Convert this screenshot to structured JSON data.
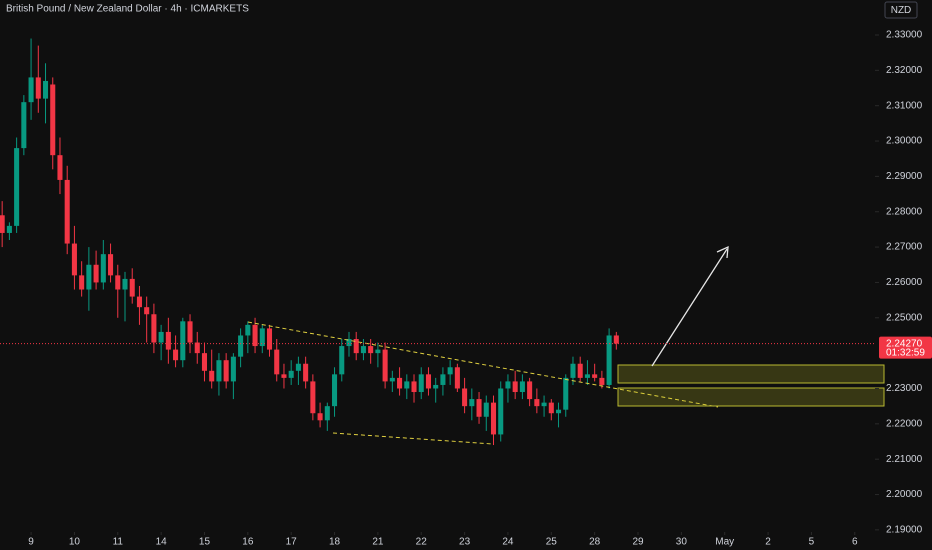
{
  "chart_data": {
    "type": "candlestick",
    "title": "British Pound / New Zealand Dollar · 4h · ICMARKETS",
    "currency": "NZD",
    "up_color": "#089981",
    "down_color": "#f23645",
    "x": [
      -4,
      -3,
      -2,
      -1,
      0,
      1,
      2,
      3,
      4,
      5,
      6,
      7,
      8,
      9,
      10,
      11,
      12,
      13,
      14,
      15,
      16,
      17,
      18,
      19,
      20,
      21,
      22,
      23,
      24,
      25,
      26,
      27,
      28,
      29,
      30,
      31,
      32,
      33,
      34,
      35,
      36,
      37,
      38,
      39,
      40,
      41,
      42,
      43,
      44,
      45,
      46,
      47,
      48,
      49,
      50,
      51,
      52,
      53,
      54,
      55,
      56,
      57,
      58,
      59,
      60,
      61,
      62,
      63,
      64,
      65,
      66,
      67,
      68,
      69,
      70,
      71,
      72,
      73,
      74,
      75,
      76,
      77,
      78,
      79,
      80,
      81
    ],
    "open": [
      2.279,
      2.274,
      2.276,
      2.298,
      2.311,
      2.318,
      2.312,
      2.316,
      2.296,
      2.289,
      2.271,
      2.262,
      2.258,
      2.265,
      2.26,
      2.268,
      2.262,
      2.258,
      2.261,
      2.256,
      2.253,
      2.251,
      2.243,
      2.246,
      2.241,
      2.238,
      2.249,
      2.243,
      2.24,
      2.235,
      2.232,
      2.238,
      2.232,
      2.239,
      2.245,
      2.248,
      2.242,
      2.247,
      2.241,
      2.234,
      2.233,
      2.235,
      2.237,
      2.232,
      2.223,
      2.221,
      2.225,
      2.234,
      2.242,
      2.244,
      2.24,
      2.242,
      2.24,
      2.241,
      2.232,
      2.233,
      2.23,
      2.232,
      2.229,
      2.234,
      2.23,
      2.231,
      2.234,
      2.236,
      2.23,
      2.225,
      2.227,
      2.222,
      2.226,
      2.217,
      2.23,
      2.232,
      2.229,
      2.232,
      2.227,
      2.225,
      2.226,
      2.223,
      2.224,
      2.233,
      2.237,
      2.233,
      2.234,
      2.233,
      2.231,
      2.245
    ],
    "high": [
      2.283,
      2.277,
      2.301,
      2.313,
      2.329,
      2.327,
      2.322,
      2.318,
      2.301,
      2.293,
      2.276,
      2.266,
      2.27,
      2.269,
      2.272,
      2.271,
      2.265,
      2.263,
      2.264,
      2.259,
      2.256,
      2.254,
      2.248,
      2.25,
      2.245,
      2.25,
      2.251,
      2.246,
      2.243,
      2.241,
      2.24,
      2.24,
      2.24,
      2.247,
      2.249,
      2.25,
      2.248,
      2.248,
      2.244,
      2.237,
      2.238,
      2.239,
      2.239,
      2.234,
      2.226,
      2.226,
      2.236,
      2.244,
      2.246,
      2.246,
      2.244,
      2.244,
      2.243,
      2.243,
      2.235,
      2.236,
      2.234,
      2.234,
      2.236,
      2.236,
      2.233,
      2.236,
      2.238,
      2.237,
      2.233,
      2.23,
      2.229,
      2.228,
      2.228,
      2.232,
      2.234,
      2.235,
      2.234,
      2.233,
      2.23,
      2.228,
      2.227,
      2.226,
      2.234,
      2.239,
      2.239,
      2.238,
      2.237,
      2.235,
      2.247,
      2.246
    ],
    "low": [
      2.27,
      2.272,
      2.274,
      2.296,
      2.306,
      2.308,
      2.305,
      2.292,
      2.285,
      2.268,
      2.258,
      2.256,
      2.252,
      2.258,
      2.258,
      2.26,
      2.25,
      2.249,
      2.254,
      2.248,
      2.243,
      2.24,
      2.238,
      2.237,
      2.236,
      2.236,
      2.24,
      2.237,
      2.232,
      2.23,
      2.228,
      2.23,
      2.227,
      2.236,
      2.24,
      2.24,
      2.24,
      2.239,
      2.232,
      2.23,
      2.231,
      2.231,
      2.23,
      2.221,
      2.219,
      2.218,
      2.222,
      2.232,
      2.239,
      2.238,
      2.238,
      2.237,
      2.236,
      2.23,
      2.229,
      2.228,
      2.227,
      2.226,
      2.227,
      2.228,
      2.226,
      2.228,
      2.231,
      2.229,
      2.223,
      2.221,
      2.22,
      2.218,
      2.214,
      2.215,
      2.226,
      2.227,
      2.227,
      2.225,
      2.223,
      2.222,
      2.221,
      2.219,
      2.222,
      2.231,
      2.232,
      2.231,
      2.232,
      2.23,
      2.23,
      2.241
    ],
    "close": [
      2.274,
      2.276,
      2.298,
      2.311,
      2.318,
      2.312,
      2.317,
      2.296,
      2.289,
      2.271,
      2.262,
      2.258,
      2.265,
      2.26,
      2.268,
      2.262,
      2.258,
      2.261,
      2.256,
      2.253,
      2.251,
      2.243,
      2.246,
      2.241,
      2.238,
      2.249,
      2.243,
      2.24,
      2.235,
      2.232,
      2.238,
      2.232,
      2.239,
      2.245,
      2.248,
      2.242,
      2.247,
      2.241,
      2.234,
      2.233,
      2.235,
      2.237,
      2.232,
      2.223,
      2.221,
      2.225,
      2.234,
      2.242,
      2.244,
      2.24,
      2.242,
      2.24,
      2.241,
      2.232,
      2.233,
      2.23,
      2.232,
      2.229,
      2.234,
      2.23,
      2.231,
      2.234,
      2.236,
      2.23,
      2.225,
      2.227,
      2.222,
      2.226,
      2.217,
      2.23,
      2.232,
      2.229,
      2.232,
      2.227,
      2.225,
      2.226,
      2.223,
      2.224,
      2.233,
      2.237,
      2.233,
      2.234,
      2.233,
      2.231,
      2.245,
      2.2427
    ],
    "last_price": {
      "value": 2.2427,
      "label": "2.24270"
    },
    "countdown": "01:32:59",
    "xlim": [
      -4.3,
      116.8
    ],
    "xticks": [
      {
        "value": 0,
        "label": "9"
      },
      {
        "value": 6,
        "label": "10"
      },
      {
        "value": 12,
        "label": "11"
      },
      {
        "value": 18,
        "label": "14"
      },
      {
        "value": 24,
        "label": "15"
      },
      {
        "value": 30,
        "label": "16"
      },
      {
        "value": 36,
        "label": "17"
      },
      {
        "value": 42,
        "label": "18"
      },
      {
        "value": 48,
        "label": "21"
      },
      {
        "value": 54,
        "label": "22"
      },
      {
        "value": 60,
        "label": "23"
      },
      {
        "value": 66,
        "label": "24"
      },
      {
        "value": 72,
        "label": "25"
      },
      {
        "value": 78,
        "label": "28"
      },
      {
        "value": 84,
        "label": "29"
      },
      {
        "value": 90,
        "label": "30"
      },
      {
        "value": 96,
        "label": "May"
      },
      {
        "value": 102,
        "label": "2"
      },
      {
        "value": 108,
        "label": "5"
      },
      {
        "value": 114,
        "label": "6"
      }
    ],
    "ylim": [
      2.1894,
      2.3399
    ],
    "yticks": [
      {
        "value": 2.19,
        "label": "2.19000"
      },
      {
        "value": 2.2,
        "label": "2.20000"
      },
      {
        "value": 2.21,
        "label": "2.21000"
      },
      {
        "value": 2.22,
        "label": "2.22000"
      },
      {
        "value": 2.23,
        "label": "2.23000"
      },
      {
        "value": 2.25,
        "label": "2.25000"
      },
      {
        "value": 2.26,
        "label": "2.26000"
      },
      {
        "value": 2.27,
        "label": "2.27000"
      },
      {
        "value": 2.28,
        "label": "2.28000"
      },
      {
        "value": 2.29,
        "label": "2.29000"
      },
      {
        "value": 2.3,
        "label": "2.30000"
      },
      {
        "value": 2.31,
        "label": "2.31000"
      },
      {
        "value": 2.32,
        "label": "2.32000"
      },
      {
        "value": 2.33,
        "label": "2.33000"
      }
    ]
  }
}
